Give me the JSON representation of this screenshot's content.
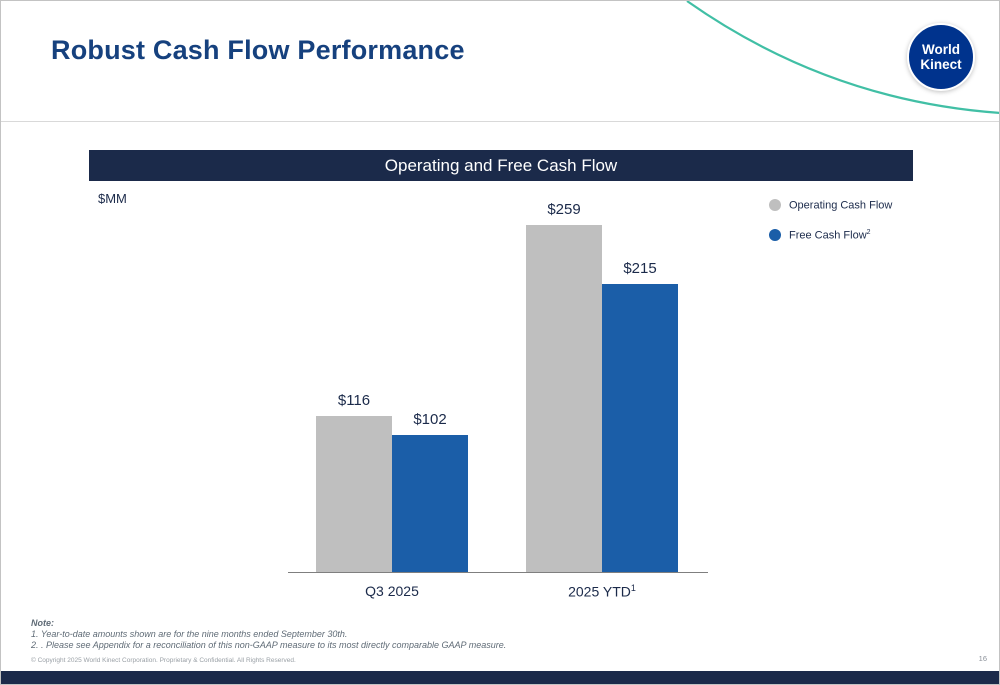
{
  "slide": {
    "title": "Robust Cash Flow Performance",
    "banner_title": "Operating and Free Cash Flow",
    "units_label": "$MM",
    "page_number": "16",
    "copyright": "© Copyright 2025 World Kinect Corporation. Proprietary & Confidential. All Rights Reserved."
  },
  "logo": {
    "line1": "World",
    "line2": "Kinect"
  },
  "legend": [
    {
      "label": "Operating Cash Flow",
      "sup": "",
      "color": "#BFBFBF"
    },
    {
      "label": "Free Cash Flow",
      "sup": "2",
      "color": "#1B5EA8"
    }
  ],
  "notes": {
    "heading": "Note:",
    "items": [
      "1. Year-to-date amounts shown are for the nine months ended September 30th.",
      "2. . Please see Appendix for a reconciliation of this non-GAAP measure to its most directly comparable GAAP measure."
    ]
  },
  "colors": {
    "title_blue": "#16417E",
    "banner_navy": "#1B2A4A",
    "bar_gray": "#BFBFBF",
    "bar_blue": "#1B5EA8",
    "curve_teal": "#41BFA5",
    "logo_blue": "#00338D"
  },
  "chart_data": {
    "type": "bar",
    "title": "Operating and Free Cash Flow",
    "ylabel": "$MM",
    "categories": [
      "Q3 2025",
      "2025 YTD"
    ],
    "category_superscripts": [
      "",
      "1"
    ],
    "series": [
      {
        "name": "Operating Cash Flow",
        "color": "#BFBFBF",
        "values": [
          116,
          259
        ]
      },
      {
        "name": "Free Cash Flow",
        "color": "#1B5EA8",
        "values": [
          102,
          215
        ]
      }
    ],
    "value_prefix": "$",
    "ylim": [
      0,
      270
    ],
    "grid": false,
    "legend_position": "top-right"
  }
}
